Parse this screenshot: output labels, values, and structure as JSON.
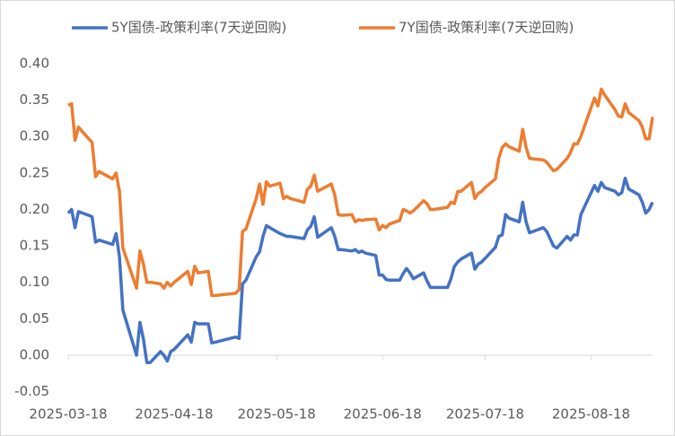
{
  "chart_data": {
    "type": "line",
    "x": [
      "2025-03-18",
      "2025-03-19",
      "2025-03-20",
      "2025-03-21",
      "2025-03-24",
      "2025-03-25",
      "2025-03-26",
      "2025-03-27",
      "2025-03-31",
      "2025-04-01",
      "2025-04-02",
      "2025-04-03",
      "2025-04-07",
      "2025-04-08",
      "2025-04-09",
      "2025-04-10",
      "2025-04-11",
      "2025-04-14",
      "2025-04-15",
      "2025-04-16",
      "2025-04-17",
      "2025-04-18",
      "2025-04-22",
      "2025-04-23",
      "2025-04-24",
      "2025-04-25",
      "2025-04-28",
      "2025-04-29",
      "2025-04-30",
      "2025-05-06",
      "2025-05-07",
      "2025-05-08",
      "2025-05-09",
      "2025-05-12",
      "2025-05-13",
      "2025-05-14",
      "2025-05-15",
      "2025-05-16",
      "2025-05-19",
      "2025-05-20",
      "2025-05-21",
      "2025-05-22",
      "2025-05-26",
      "2025-05-27",
      "2025-05-28",
      "2025-05-29",
      "2025-05-30",
      "2025-06-03",
      "2025-06-04",
      "2025-06-05",
      "2025-06-06",
      "2025-06-09",
      "2025-06-10",
      "2025-06-11",
      "2025-06-12",
      "2025-06-13",
      "2025-06-16",
      "2025-06-17",
      "2025-06-18",
      "2025-06-19",
      "2025-06-20",
      "2025-06-23",
      "2025-06-24",
      "2025-06-25",
      "2025-06-26",
      "2025-06-27",
      "2025-06-30",
      "2025-07-01",
      "2025-07-02",
      "2025-07-03",
      "2025-07-07",
      "2025-07-08",
      "2025-07-09",
      "2025-07-10",
      "2025-07-11",
      "2025-07-14",
      "2025-07-15",
      "2025-07-16",
      "2025-07-17",
      "2025-07-18",
      "2025-07-21",
      "2025-07-22",
      "2025-07-23",
      "2025-07-24",
      "2025-07-25",
      "2025-07-28",
      "2025-07-29",
      "2025-07-30",
      "2025-07-31",
      "2025-08-04",
      "2025-08-05",
      "2025-08-07",
      "2025-08-08",
      "2025-08-11",
      "2025-08-12",
      "2025-08-13",
      "2025-08-14",
      "2025-08-15",
      "2025-08-19",
      "2025-08-20",
      "2025-08-21",
      "2025-08-22",
      "2025-08-25",
      "2025-08-26",
      "2025-08-27",
      "2025-08-28",
      "2025-08-29",
      "2025-09-01",
      "2025-09-02",
      "2025-09-03",
      "2025-09-04",
      "2025-09-05"
    ],
    "series": [
      {
        "name": "5Y国债-政策利率(7天逆回购)",
        "color": "#4472c4",
        "values": [
          0.195,
          0.2,
          0.175,
          0.197,
          0.192,
          0.19,
          0.155,
          0.158,
          0.152,
          0.167,
          0.135,
          0.062,
          0.0,
          0.045,
          0.022,
          -0.01,
          -0.01,
          0.005,
          0.0,
          -0.008,
          0.005,
          0.008,
          0.028,
          0.018,
          0.045,
          0.043,
          0.043,
          0.017,
          0.018,
          0.025,
          0.023,
          0.098,
          0.103,
          0.135,
          0.142,
          0.163,
          0.178,
          0.175,
          0.167,
          0.165,
          0.163,
          0.163,
          0.16,
          0.172,
          0.177,
          0.19,
          0.162,
          0.175,
          0.163,
          0.145,
          0.145,
          0.143,
          0.145,
          0.141,
          0.143,
          0.14,
          0.137,
          0.11,
          0.11,
          0.104,
          0.103,
          0.103,
          0.112,
          0.119,
          0.113,
          0.105,
          0.113,
          0.102,
          0.093,
          0.093,
          0.093,
          0.105,
          0.122,
          0.128,
          0.132,
          0.14,
          0.118,
          0.125,
          0.128,
          0.133,
          0.148,
          0.163,
          0.165,
          0.193,
          0.188,
          0.183,
          0.21,
          0.183,
          0.168,
          0.175,
          0.17,
          0.15,
          0.147,
          0.163,
          0.158,
          0.165,
          0.165,
          0.193,
          0.233,
          0.225,
          0.237,
          0.23,
          0.225,
          0.22,
          0.223,
          0.243,
          0.228,
          0.22,
          0.21,
          0.195,
          0.2,
          0.21
        ]
      },
      {
        "name": "7Y国债-政策利率(7天逆回购)",
        "color": "#ed7d31",
        "values": [
          0.343,
          0.345,
          0.295,
          0.313,
          0.297,
          0.292,
          0.245,
          0.252,
          0.242,
          0.25,
          0.225,
          0.147,
          0.092,
          0.143,
          0.125,
          0.1,
          0.1,
          0.098,
          0.092,
          0.1,
          0.095,
          0.1,
          0.115,
          0.097,
          0.122,
          0.113,
          0.115,
          0.082,
          0.082,
          0.085,
          0.09,
          0.17,
          0.173,
          0.215,
          0.235,
          0.207,
          0.238,
          0.232,
          0.236,
          0.215,
          0.218,
          0.215,
          0.21,
          0.228,
          0.232,
          0.247,
          0.225,
          0.235,
          0.22,
          0.193,
          0.192,
          0.193,
          0.183,
          0.186,
          0.185,
          0.186,
          0.187,
          0.172,
          0.178,
          0.175,
          0.18,
          0.185,
          0.2,
          0.198,
          0.195,
          0.198,
          0.212,
          0.208,
          0.2,
          0.2,
          0.203,
          0.21,
          0.208,
          0.225,
          0.225,
          0.237,
          0.215,
          0.222,
          0.225,
          0.23,
          0.242,
          0.27,
          0.285,
          0.29,
          0.286,
          0.28,
          0.31,
          0.285,
          0.27,
          0.268,
          0.265,
          0.253,
          0.255,
          0.27,
          0.278,
          0.29,
          0.29,
          0.3,
          0.353,
          0.342,
          0.365,
          0.357,
          0.337,
          0.328,
          0.327,
          0.345,
          0.333,
          0.322,
          0.313,
          0.297,
          0.297,
          0.327
        ]
      }
    ],
    "xlim": [
      "2025-03-18",
      "2025-09-05"
    ],
    "xticks": [
      "2025-03-18",
      "2025-04-18",
      "2025-05-18",
      "2025-06-18",
      "2025-07-18",
      "2025-08-18"
    ],
    "ylim": [
      -0.05,
      0.4
    ],
    "yticks": [
      {
        "value": -0.05,
        "label": "-0.05"
      },
      {
        "value": 0,
        "label": "0.00"
      },
      {
        "value": 0.05,
        "label": "0.05"
      },
      {
        "value": 0.1,
        "label": "0.10"
      },
      {
        "value": 0.15,
        "label": "0.15"
      },
      {
        "value": 0.2,
        "label": "0.20"
      },
      {
        "value": 0.25,
        "label": "0.25"
      },
      {
        "value": 0.3,
        "label": "0.30"
      },
      {
        "value": 0.35,
        "label": "0.35"
      },
      {
        "value": 0.4,
        "label": "0.40"
      }
    ],
    "grid": false,
    "legend": "top"
  }
}
